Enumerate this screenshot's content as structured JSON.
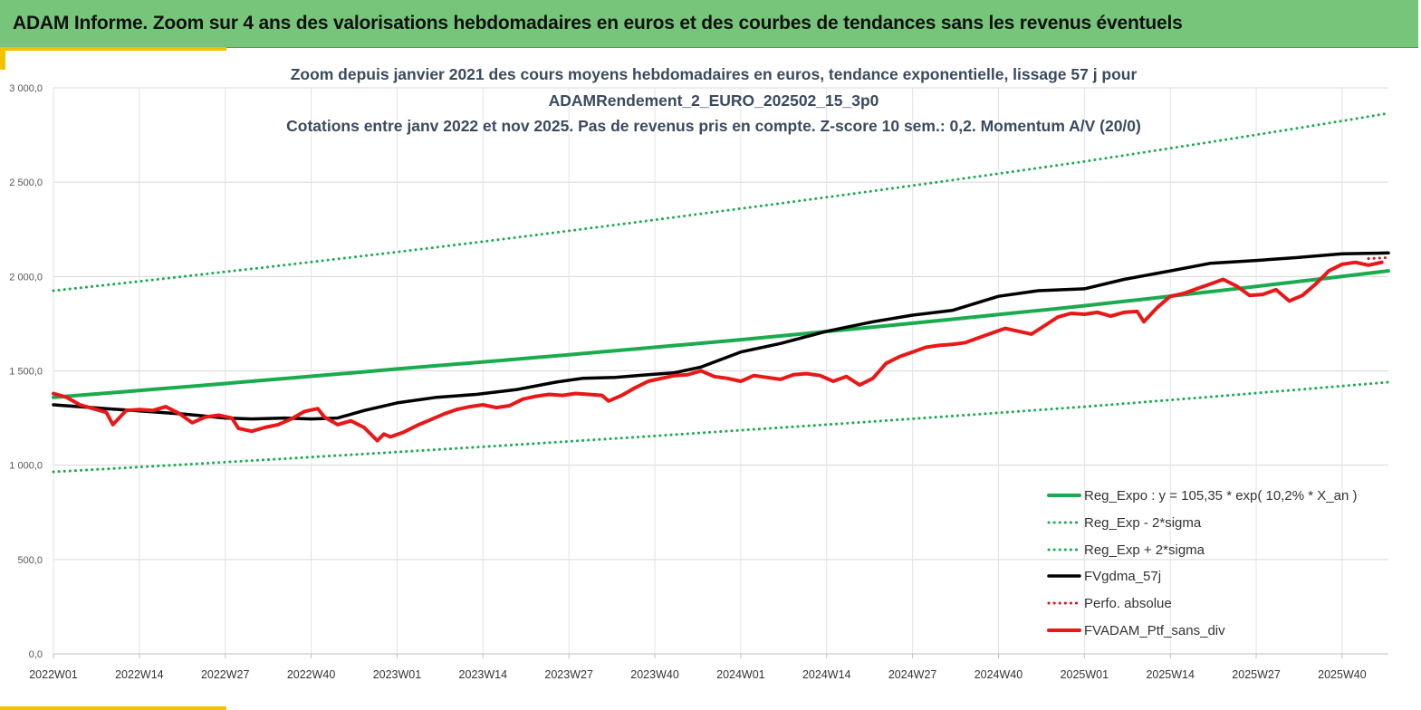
{
  "banner": {
    "title": "ADAM Informe. Zoom sur 4 ans des valorisations hebdomadaires en euros et des courbes de tendances sans les revenus éventuels"
  },
  "colors": {
    "banner": "#77c57a",
    "accent_bar": "#f2c200",
    "regression": "#1aab4f",
    "fvgdma": "#000000",
    "fvadam": "#e81818",
    "perfo": "#d81414"
  },
  "chart_data": {
    "type": "line",
    "title_lines": [
      "Zoom depuis janvier 2021 des cours moyens hebdomadaires  en euros, tendance exponentielle, lissage 57 j pour",
      "ADAMRendement_2_EURO_202502_15_3p0",
      "Cotations  entre janv 2022 et nov 2025. Pas de revenus pris en compte. Z-score 10 sem.: 0,2. Momentum A/V (20/0)"
    ],
    "ylim": [
      0,
      3000
    ],
    "y_ticks": [
      {
        "value": 0,
        "label": "0,0"
      },
      {
        "value": 500,
        "label": "500,0"
      },
      {
        "value": 1000,
        "label": "1 000,0"
      },
      {
        "value": 1500,
        "label": "1 500,0"
      },
      {
        "value": 2000,
        "label": "2 000,0"
      },
      {
        "value": 2500,
        "label": "2 500,0"
      },
      {
        "value": 3000,
        "label": "3 000,0"
      }
    ],
    "x_range": [
      0,
      202
    ],
    "x_ticks": [
      {
        "week": 0,
        "label": "2022W01"
      },
      {
        "week": 13,
        "label": "2022W14"
      },
      {
        "week": 26,
        "label": "2022W27"
      },
      {
        "week": 39,
        "label": "2022W40"
      },
      {
        "week": 52,
        "label": "2023W01"
      },
      {
        "week": 65,
        "label": "2023W14"
      },
      {
        "week": 78,
        "label": "2023W27"
      },
      {
        "week": 91,
        "label": "2023W40"
      },
      {
        "week": 104,
        "label": "2024W01"
      },
      {
        "week": 117,
        "label": "2024W14"
      },
      {
        "week": 130,
        "label": "2024W27"
      },
      {
        "week": 143,
        "label": "2024W40"
      },
      {
        "week": 156,
        "label": "2025W01"
      },
      {
        "week": 169,
        "label": "2025W14"
      },
      {
        "week": 182,
        "label": "2025W27"
      },
      {
        "week": 195,
        "label": "2025W40"
      }
    ],
    "grid": true,
    "legend_position": "bottom-right",
    "series": [
      {
        "name": "Reg_Expo : y = 105,35 * exp( 10,2% *  X_an )",
        "style": "solid-thick",
        "color": "#1aab4f",
        "points": [
          [
            0,
            1360
          ],
          [
            52,
            1510
          ],
          [
            104,
            1665
          ],
          [
            156,
            1845
          ],
          [
            202,
            2030
          ]
        ]
      },
      {
        "name": "Reg_Exp - 2*sigma",
        "style": "dotted",
        "color": "#1aab4f",
        "points": [
          [
            0,
            965
          ],
          [
            52,
            1070
          ],
          [
            104,
            1185
          ],
          [
            156,
            1310
          ],
          [
            202,
            1440
          ]
        ]
      },
      {
        "name": "Reg_Exp + 2*sigma",
        "style": "dotted",
        "color": "#1aab4f",
        "points": [
          [
            0,
            1925
          ],
          [
            52,
            2130
          ],
          [
            104,
            2360
          ],
          [
            156,
            2610
          ],
          [
            202,
            2865
          ]
        ]
      },
      {
        "name": "FVgdma_57j",
        "style": "solid",
        "color": "#000000",
        "points": [
          [
            0,
            1320
          ],
          [
            8,
            1300
          ],
          [
            14,
            1285
          ],
          [
            20,
            1270
          ],
          [
            26,
            1250
          ],
          [
            30,
            1245
          ],
          [
            35,
            1250
          ],
          [
            39,
            1245
          ],
          [
            43,
            1250
          ],
          [
            47,
            1290
          ],
          [
            52,
            1330
          ],
          [
            58,
            1360
          ],
          [
            64,
            1375
          ],
          [
            70,
            1400
          ],
          [
            76,
            1440
          ],
          [
            80,
            1460
          ],
          [
            85,
            1465
          ],
          [
            90,
            1480
          ],
          [
            94,
            1490
          ],
          [
            98,
            1520
          ],
          [
            104,
            1600
          ],
          [
            110,
            1645
          ],
          [
            117,
            1710
          ],
          [
            124,
            1760
          ],
          [
            130,
            1795
          ],
          [
            136,
            1820
          ],
          [
            143,
            1895
          ],
          [
            149,
            1925
          ],
          [
            156,
            1935
          ],
          [
            162,
            1985
          ],
          [
            169,
            2030
          ],
          [
            175,
            2070
          ],
          [
            182,
            2085
          ],
          [
            188,
            2100
          ],
          [
            195,
            2120
          ],
          [
            202,
            2125
          ]
        ]
      },
      {
        "name": "Perfo. absolue",
        "style": "dotted",
        "color": "#d81414",
        "points": [
          [
            199,
            2095
          ],
          [
            202,
            2100
          ]
        ]
      },
      {
        "name": "FVADAM_Ptf_sans_div",
        "style": "solid-thick",
        "color": "#e81818",
        "points": [
          [
            0,
            1380
          ],
          [
            2,
            1360
          ],
          [
            4,
            1320
          ],
          [
            6,
            1300
          ],
          [
            8,
            1280
          ],
          [
            9,
            1215
          ],
          [
            11,
            1290
          ],
          [
            13,
            1295
          ],
          [
            15,
            1290
          ],
          [
            17,
            1310
          ],
          [
            19,
            1275
          ],
          [
            21,
            1225
          ],
          [
            23,
            1255
          ],
          [
            25,
            1265
          ],
          [
            27,
            1250
          ],
          [
            28,
            1195
          ],
          [
            30,
            1180
          ],
          [
            32,
            1200
          ],
          [
            34,
            1215
          ],
          [
            36,
            1245
          ],
          [
            38,
            1285
          ],
          [
            40,
            1300
          ],
          [
            41,
            1255
          ],
          [
            43,
            1215
          ],
          [
            45,
            1235
          ],
          [
            47,
            1200
          ],
          [
            49,
            1130
          ],
          [
            50,
            1165
          ],
          [
            51,
            1150
          ],
          [
            53,
            1175
          ],
          [
            55,
            1210
          ],
          [
            57,
            1240
          ],
          [
            59,
            1270
          ],
          [
            61,
            1295
          ],
          [
            63,
            1310
          ],
          [
            65,
            1320
          ],
          [
            67,
            1305
          ],
          [
            69,
            1315
          ],
          [
            71,
            1350
          ],
          [
            73,
            1365
          ],
          [
            75,
            1375
          ],
          [
            77,
            1370
          ],
          [
            79,
            1380
          ],
          [
            81,
            1375
          ],
          [
            83,
            1370
          ],
          [
            84,
            1340
          ],
          [
            86,
            1370
          ],
          [
            88,
            1410
          ],
          [
            90,
            1445
          ],
          [
            92,
            1460
          ],
          [
            94,
            1475
          ],
          [
            96,
            1480
          ],
          [
            98,
            1500
          ],
          [
            100,
            1470
          ],
          [
            102,
            1460
          ],
          [
            104,
            1445
          ],
          [
            106,
            1475
          ],
          [
            108,
            1465
          ],
          [
            110,
            1455
          ],
          [
            112,
            1480
          ],
          [
            114,
            1485
          ],
          [
            116,
            1475
          ],
          [
            118,
            1445
          ],
          [
            120,
            1470
          ],
          [
            122,
            1425
          ],
          [
            124,
            1460
          ],
          [
            126,
            1540
          ],
          [
            128,
            1575
          ],
          [
            130,
            1600
          ],
          [
            132,
            1625
          ],
          [
            134,
            1635
          ],
          [
            136,
            1640
          ],
          [
            138,
            1650
          ],
          [
            140,
            1675
          ],
          [
            142,
            1700
          ],
          [
            144,
            1725
          ],
          [
            146,
            1710
          ],
          [
            148,
            1695
          ],
          [
            150,
            1740
          ],
          [
            152,
            1785
          ],
          [
            154,
            1805
          ],
          [
            156,
            1800
          ],
          [
            158,
            1810
          ],
          [
            160,
            1790
          ],
          [
            162,
            1810
          ],
          [
            164,
            1815
          ],
          [
            165,
            1760
          ],
          [
            167,
            1835
          ],
          [
            169,
            1895
          ],
          [
            171,
            1910
          ],
          [
            173,
            1935
          ],
          [
            175,
            1960
          ],
          [
            177,
            1985
          ],
          [
            179,
            1950
          ],
          [
            181,
            1900
          ],
          [
            183,
            1905
          ],
          [
            185,
            1930
          ],
          [
            187,
            1870
          ],
          [
            189,
            1900
          ],
          [
            191,
            1960
          ],
          [
            193,
            2030
          ],
          [
            195,
            2065
          ],
          [
            197,
            2075
          ],
          [
            199,
            2060
          ],
          [
            201,
            2075
          ]
        ]
      }
    ]
  }
}
